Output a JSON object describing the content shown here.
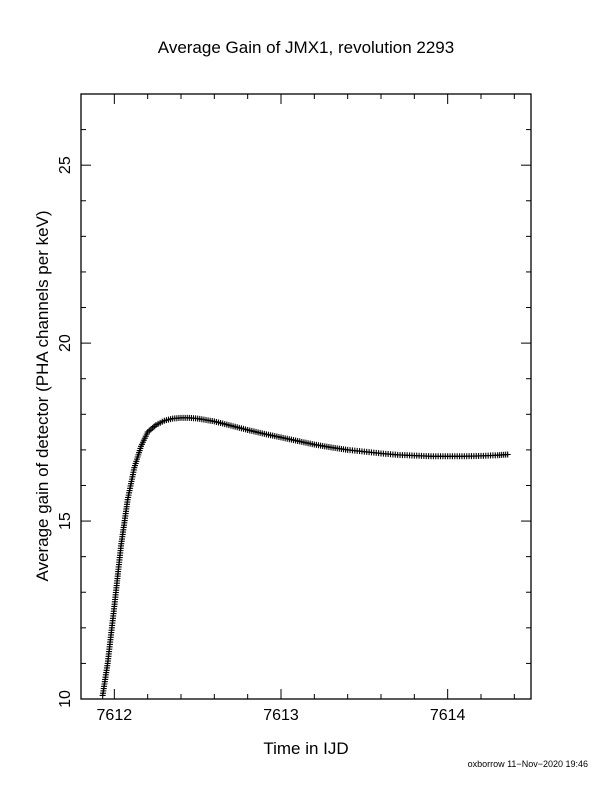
{
  "chart_data": {
    "type": "scatter",
    "title": "Average Gain of JMX1, revolution 2293",
    "xlabel": "Time in IJD",
    "ylabel": "Average gain of detector (PHA channels per keV)",
    "footer": "oxborrow 11−Nov−2020 19:46",
    "xlim": [
      7611.8,
      7614.5
    ],
    "ylim": [
      10,
      27
    ],
    "x_ticks": [
      7612,
      7613,
      7614
    ],
    "y_ticks": [
      10,
      15,
      20,
      25
    ],
    "x_tick_labels": [
      "7612",
      "7613",
      "7614"
    ],
    "y_tick_labels": [
      "10",
      "15",
      "20",
      "25"
    ],
    "marker": "+",
    "grid": false,
    "series": [
      {
        "x": [
          7611.93,
          7611.96,
          7612.0,
          7612.04,
          7612.08,
          7612.12,
          7612.16,
          7612.2,
          7612.25,
          7612.3,
          7612.35,
          7612.4,
          7612.45,
          7612.5,
          7612.6,
          7612.7,
          7612.8,
          7612.9,
          7613.0,
          7613.1,
          7613.2,
          7613.3,
          7613.4,
          7613.5,
          7613.6,
          7613.7,
          7613.8,
          7613.9,
          7614.0,
          7614.1,
          7614.2,
          7614.3,
          7614.36
        ],
        "y": [
          10.1,
          11.0,
          12.6,
          14.3,
          15.6,
          16.5,
          17.1,
          17.5,
          17.7,
          17.82,
          17.88,
          17.9,
          17.9,
          17.88,
          17.8,
          17.68,
          17.56,
          17.45,
          17.35,
          17.25,
          17.15,
          17.07,
          17.0,
          16.95,
          16.9,
          16.86,
          16.84,
          16.82,
          16.82,
          16.82,
          16.83,
          16.85,
          16.87
        ]
      }
    ]
  }
}
